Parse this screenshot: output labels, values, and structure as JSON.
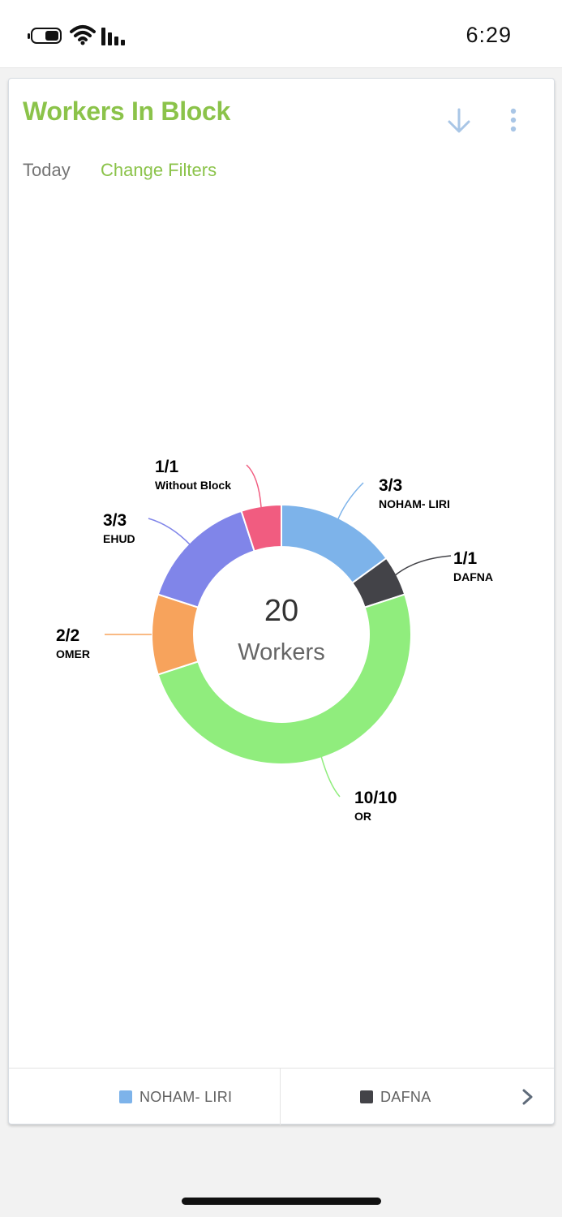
{
  "status_bar": {
    "time": "6:29"
  },
  "card": {
    "title": "Workers In Block",
    "filter_period": "Today",
    "change_filters_label": "Change Filters"
  },
  "chart_data": {
    "type": "pie",
    "center_value": "20",
    "center_label": "Workers",
    "slices": [
      {
        "name": "NOHAM- LIRI",
        "value": 3,
        "label": "3/3",
        "color": "#7db3ea"
      },
      {
        "name": "DAFNA",
        "value": 1,
        "label": "1/1",
        "color": "#434348"
      },
      {
        "name": "OR",
        "value": 10,
        "label": "10/10",
        "color": "#90ed7d"
      },
      {
        "name": "OMER",
        "value": 2,
        "label": "2/2",
        "color": "#f7a35c"
      },
      {
        "name": "EHUD",
        "value": 3,
        "label": "3/3",
        "color": "#8085e9"
      },
      {
        "name": "Without Block",
        "value": 1,
        "label": "1/1",
        "color": "#f15c80"
      }
    ]
  },
  "legend": {
    "visible_items": [
      {
        "name": "NOHAM- LIRI",
        "color": "#7db3ea"
      },
      {
        "name": "DAFNA",
        "color": "#434348"
      }
    ],
    "next_icon": "chevron-right-icon"
  },
  "icons": {
    "download": "arrow-down-icon",
    "more": "more-vertical-icon"
  }
}
